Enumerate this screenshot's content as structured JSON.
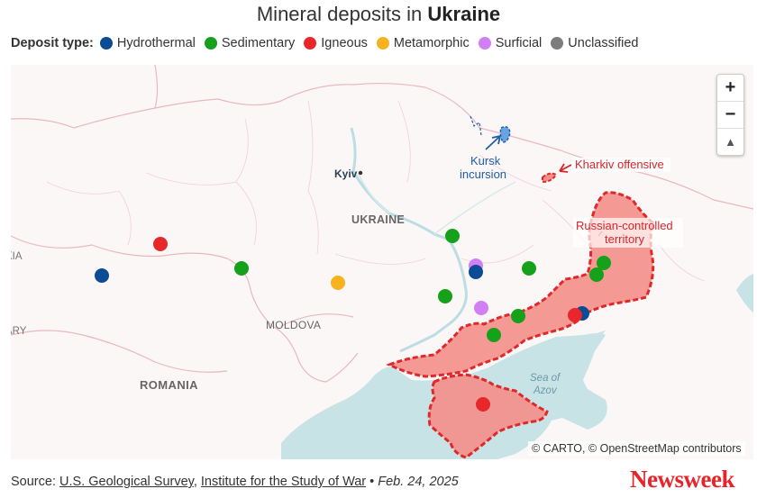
{
  "title": {
    "prefix": "Mineral deposits in ",
    "country": "Ukraine"
  },
  "legend": {
    "label": "Deposit type:",
    "items": [
      {
        "label": "Hydrothermal",
        "color": "#0b4c95"
      },
      {
        "label": "Sedimentary",
        "color": "#15a11a"
      },
      {
        "label": "Igneous",
        "color": "#e8272a"
      },
      {
        "label": "Metamorphic",
        "color": "#f7b21e"
      },
      {
        "label": "Surficial",
        "color": "#d27ff5"
      },
      {
        "label": "Unclassified",
        "color": "#7d7d7d"
      }
    ]
  },
  "map": {
    "place_labels": {
      "kyiv": "Kyiv",
      "ukraine": "UKRAINE",
      "moldova": "MOLDOVA",
      "romania": "ROMANIA",
      "sea_of_azov_line1": "Sea of",
      "sea_of_azov_line2": "Azov",
      "left_edge_1": "KIA",
      "left_edge_2": "ARY"
    },
    "annotations": {
      "kursk_line1": "Kursk",
      "kursk_line2": "incursion",
      "kharkiv": "Kharkiv offensive",
      "russian_line1": "Russian-controlled",
      "russian_line2": "territory"
    },
    "controls": {
      "zoom_in": "+",
      "zoom_out": "−",
      "north": "▲"
    },
    "attribution": "© CARTO, © OpenStreetMap contributors"
  },
  "colors": {
    "occupied_fill": "#f4908c",
    "occupied_border": "#e0282a",
    "water": "#c8e3e6",
    "annotation_red": "#d9252a",
    "annotation_blue": "#1c5ea8"
  },
  "footer": {
    "source_label": "Source:",
    "source_1": "U.S. Geological Survey",
    "separator": ",",
    "source_2": "Institute for the Study of War",
    "bullet": "•",
    "date": "Feb. 24, 2025"
  },
  "brand": "Newsweek"
}
